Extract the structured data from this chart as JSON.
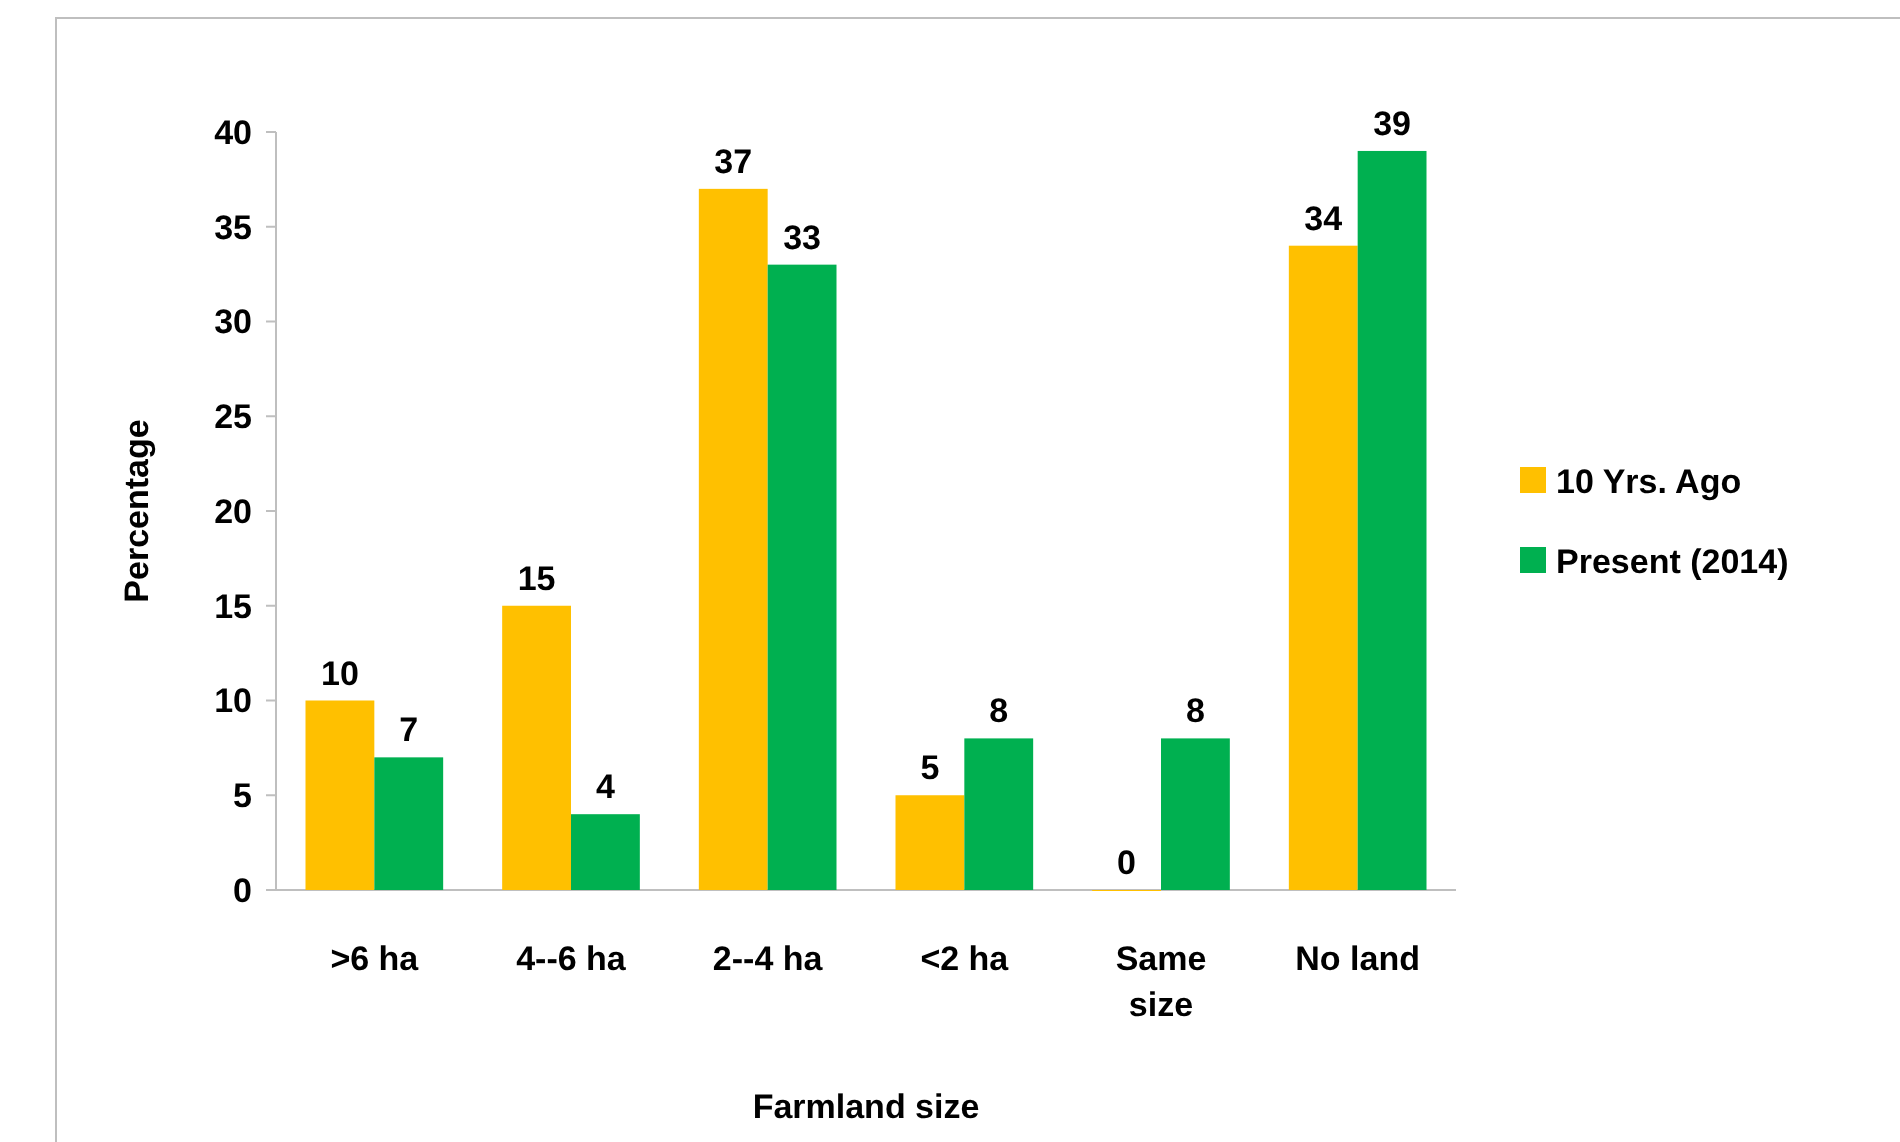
{
  "chart_data": {
    "type": "bar",
    "xlabel": "Farmland size",
    "ylabel": "Percentage",
    "categories": [
      ">6 ha",
      "4--6 ha",
      "2--4 ha",
      "<2 ha",
      "Same size",
      "No land"
    ],
    "series": [
      {
        "name": "10 Yrs. Ago",
        "color": "#ffc000",
        "values": [
          10,
          15,
          37,
          5,
          0,
          34
        ]
      },
      {
        "name": "Present (2014)",
        "color": "#00b050",
        "values": [
          7,
          4,
          33,
          8,
          8,
          39
        ]
      }
    ],
    "ylim": [
      0,
      40
    ],
    "yticks": [
      0,
      5,
      10,
      15,
      20,
      25,
      30,
      35,
      40
    ],
    "data_labels": true,
    "legend": "right"
  }
}
